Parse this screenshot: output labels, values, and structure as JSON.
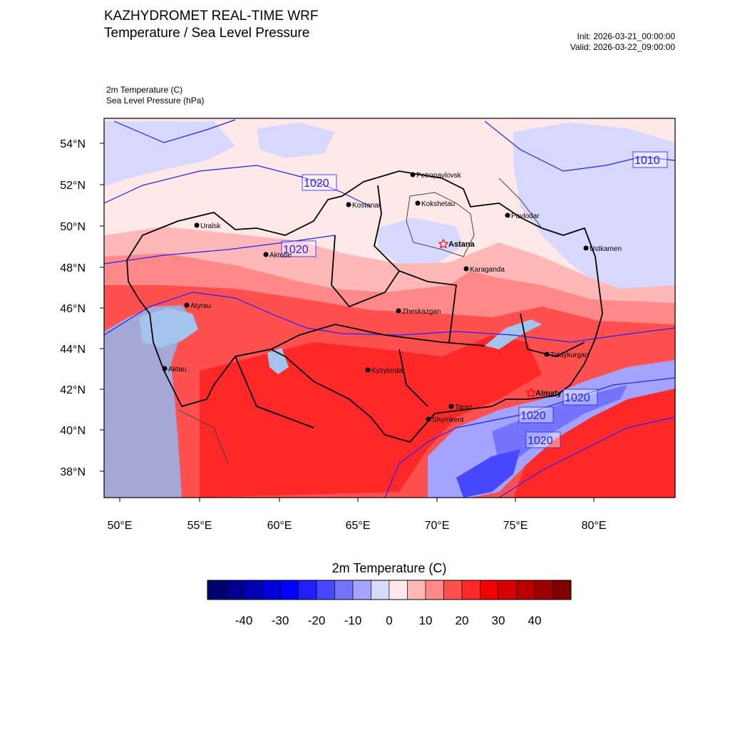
{
  "header": {
    "title": "KAZHYDROMET REAL-TIME WRF",
    "subtitle": "Temperature / Sea Level Pressure",
    "init": "Init: 2026-03-21_00:00:00",
    "valid": "Valid: 2026-03-22_09:00:00",
    "field1": "2m Temperature   (C)",
    "field2": "Sea Level Pressure   (hPa)"
  },
  "axes": {
    "lat_labels": [
      "54°N",
      "52°N",
      "50°N",
      "48°N",
      "46°N",
      "44°N",
      "42°N",
      "40°N",
      "38°N"
    ],
    "lon_labels": [
      "50°E",
      "55°E",
      "60°E",
      "65°E",
      "70°E",
      "75°E",
      "80°E"
    ]
  },
  "cities": [
    {
      "name": "Petropavlovsk"
    },
    {
      "name": "Kostanai"
    },
    {
      "name": "Kokshetau"
    },
    {
      "name": "Pavlodar"
    },
    {
      "name": "Uralsk"
    },
    {
      "name": "Astana"
    },
    {
      "name": "Ustkamen"
    },
    {
      "name": "Aktobe"
    },
    {
      "name": "Karaganda"
    },
    {
      "name": "Atyrau"
    },
    {
      "name": "Zheskazgan"
    },
    {
      "name": "Taldykurgan"
    },
    {
      "name": "Aktau"
    },
    {
      "name": "Kyzylorda"
    },
    {
      "name": "Almaty"
    },
    {
      "name": "Taraz"
    },
    {
      "name": "Shymkent"
    }
  ],
  "isobar_labels": [
    "1010",
    "1020",
    "1020",
    "1020",
    "1020",
    "1020"
  ],
  "colorbar": {
    "title": "2m Temperature  (C)",
    "colors": [
      "#00006e",
      "#000090",
      "#0000b4",
      "#0000d8",
      "#0000ff",
      "#2020ff",
      "#4848ff",
      "#7474ff",
      "#a4a4ff",
      "#d8d8ff",
      "#ffe8e8",
      "#ffb8b8",
      "#ff8888",
      "#ff5050",
      "#ff2828",
      "#f00000",
      "#d80000",
      "#b80000",
      "#9c0000",
      "#800000"
    ],
    "labels": [
      "-40",
      "-30",
      "-20",
      "-10",
      "0",
      "10",
      "20",
      "30",
      "40"
    ]
  },
  "colors": {
    "isobar": "#2020ff",
    "border": "#000000"
  }
}
